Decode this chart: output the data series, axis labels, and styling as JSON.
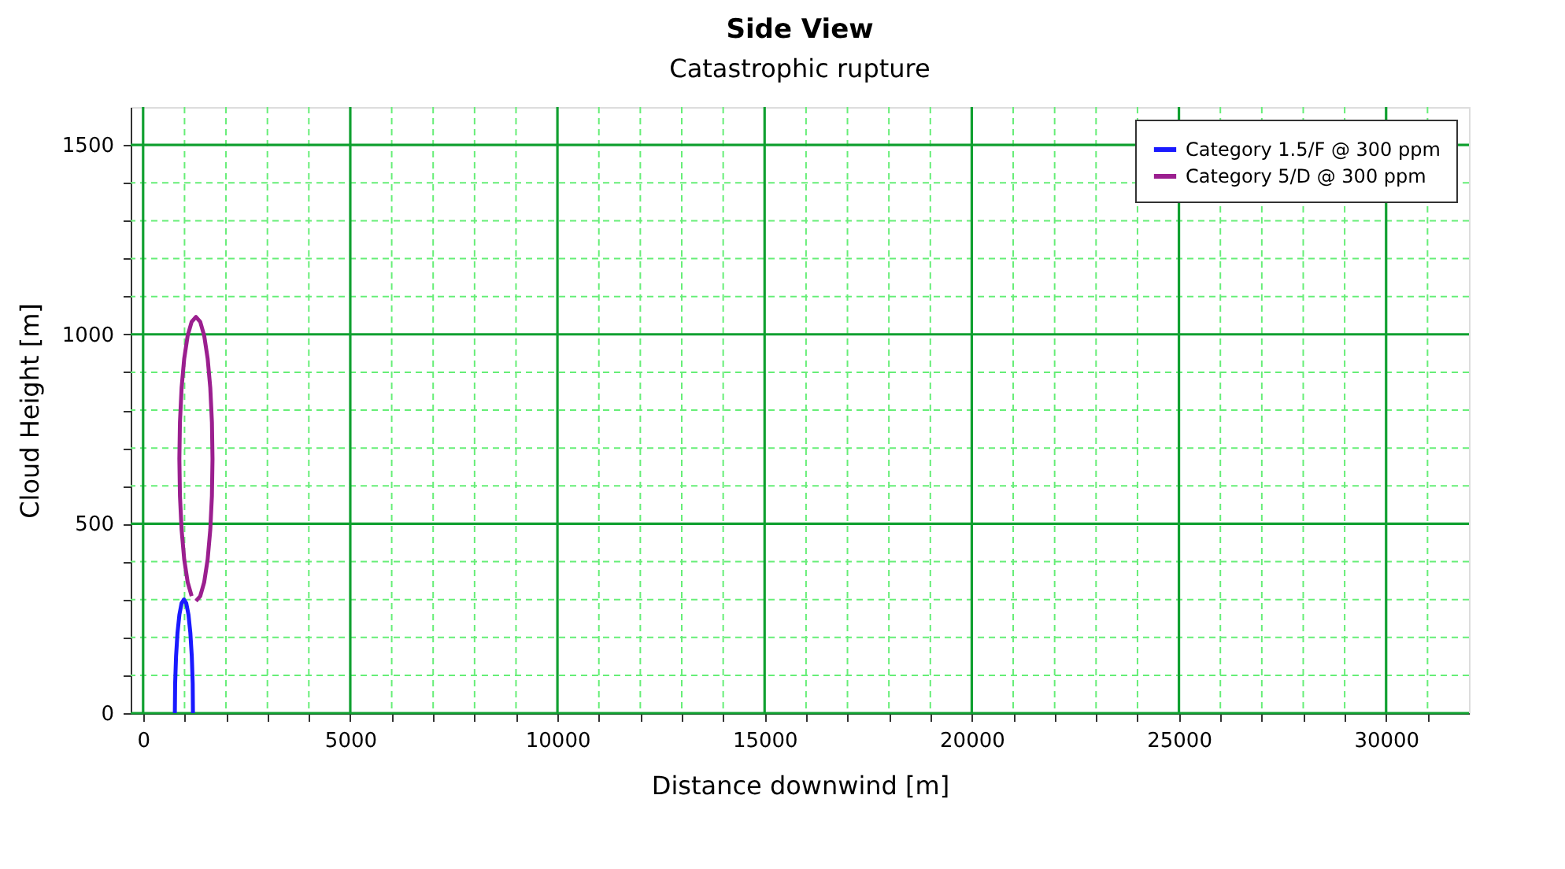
{
  "chart_data": {
    "type": "line",
    "title": "Side View",
    "subtitle": "Catastrophic rupture",
    "xlabel": "Distance downwind [m]",
    "ylabel": "Cloud Height [m]",
    "xlim": [
      -300,
      32000
    ],
    "ylim": [
      0,
      1600
    ],
    "xticks": [
      0,
      {
        "value": 1000,
        "label": null
      },
      {
        "value": 2000,
        "label": null
      },
      {
        "value": 3000,
        "label": null
      },
      {
        "value": 4000,
        "label": null
      },
      5000,
      {
        "value": 6000,
        "label": null
      },
      {
        "value": 7000,
        "label": null
      },
      {
        "value": 8000,
        "label": null
      },
      {
        "value": 9000,
        "label": null
      },
      10000,
      {
        "value": 11000,
        "label": null
      },
      {
        "value": 12000,
        "label": null
      },
      {
        "value": 13000,
        "label": null
      },
      {
        "value": 14000,
        "label": null
      },
      15000,
      {
        "value": 16000,
        "label": null
      },
      {
        "value": 17000,
        "label": null
      },
      {
        "value": 18000,
        "label": null
      },
      {
        "value": 19000,
        "label": null
      },
      20000,
      {
        "value": 21000,
        "label": null
      },
      {
        "value": 22000,
        "label": null
      },
      {
        "value": 23000,
        "label": null
      },
      {
        "value": 24000,
        "label": null
      },
      25000,
      {
        "value": 26000,
        "label": null
      },
      {
        "value": 27000,
        "label": null
      },
      {
        "value": 28000,
        "label": null
      },
      {
        "value": 29000,
        "label": null
      },
      30000,
      {
        "value": 31000,
        "label": null
      }
    ],
    "yticks": [
      0,
      {
        "value": 100,
        "label": null
      },
      {
        "value": 200,
        "label": null
      },
      {
        "value": 300,
        "label": null
      },
      {
        "value": 400,
        "label": null
      },
      500,
      {
        "value": 600,
        "label": null
      },
      {
        "value": 700,
        "label": null
      },
      {
        "value": 800,
        "label": null
      },
      {
        "value": 900,
        "label": null
      },
      1000,
      {
        "value": 1100,
        "label": null
      },
      {
        "value": 1200,
        "label": null
      },
      {
        "value": 1300,
        "label": null
      },
      {
        "value": 1400,
        "label": null
      },
      1500
    ],
    "grid": true,
    "legend": "top right",
    "marker": "none",
    "line_style": "solid",
    "series": [
      {
        "name": "Category 1.5/F @ 300 ppm",
        "color": "#1a1aff",
        "x": [
          1203,
          1197,
          1175,
          1140,
          1095,
          1042,
          985,
          928,
          876,
          830,
          795,
          773,
          766
        ],
        "values": [
          0,
          78,
          150,
          212,
          260,
          290,
          300,
          290,
          260,
          212,
          150,
          78,
          0
        ]
      },
      {
        "name": "Category 5/D @ 300 ppm",
        "color": "#9b1f8f",
        "x": [
          1275,
          1379,
          1475,
          1558,
          1621,
          1661,
          1675,
          1661,
          1621,
          1558,
          1475,
          1379,
          1275,
          1171,
          1075,
          992,
          929,
          889,
          875,
          889,
          929,
          992,
          1075,
          1171
        ],
        "values": [
          296,
          309,
          346,
          406,
          484,
          574,
          671,
          768,
          859,
          936,
          996,
          1033,
          1046,
          1033,
          996,
          936,
          859,
          768,
          671,
          574,
          484,
          406,
          346,
          309
        ]
      }
    ]
  }
}
